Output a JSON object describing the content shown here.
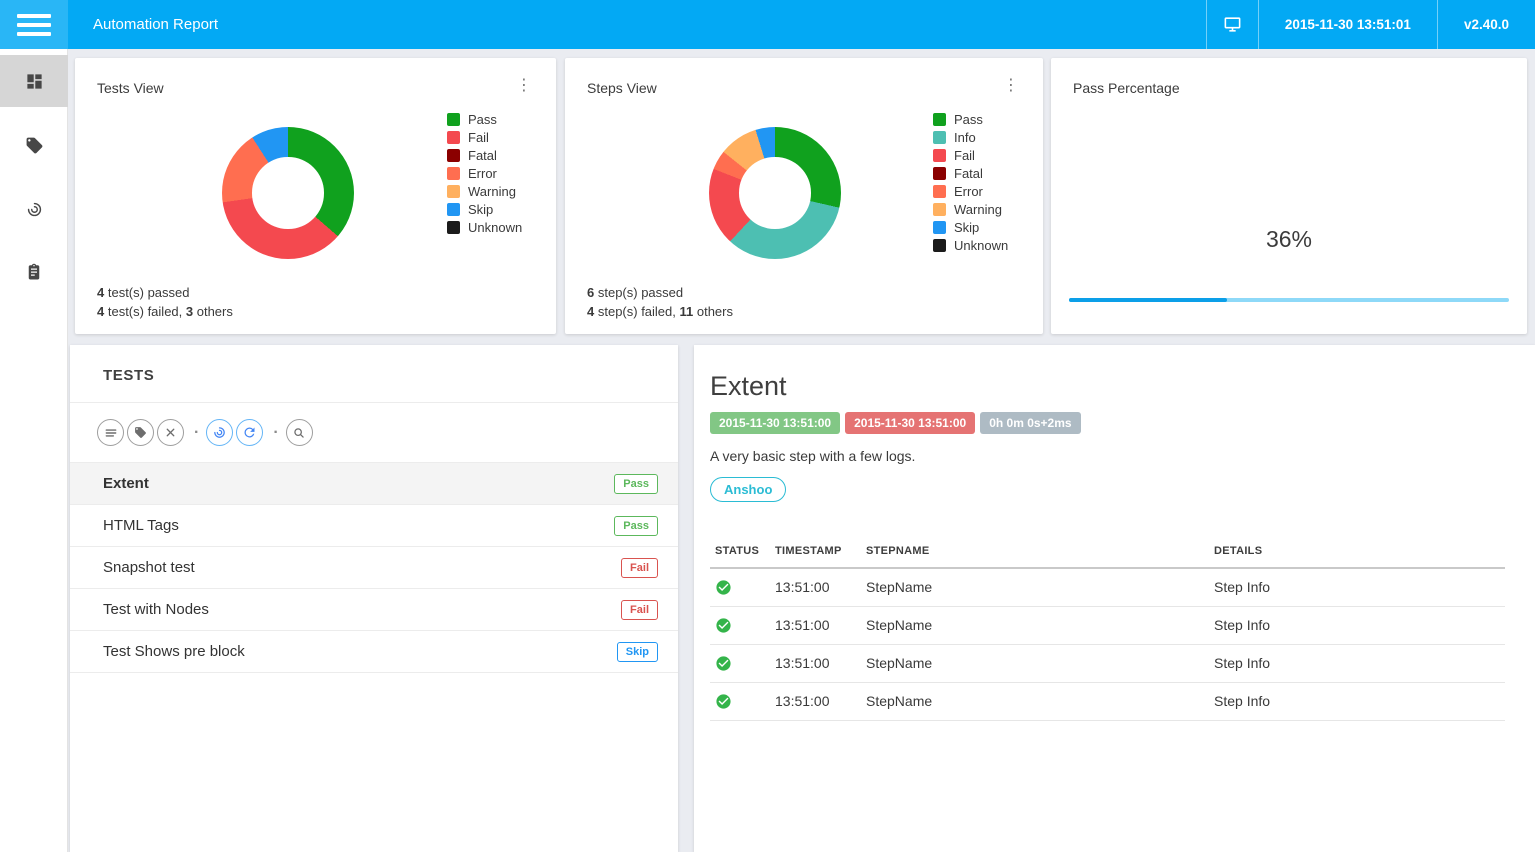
{
  "status_colors": {
    "pass": "#10a11e",
    "info": "#4dbfb2",
    "fail": "#f4494f",
    "fatal": "#8b0000",
    "error": "#ff6e50",
    "warning": "#ffb05f",
    "skip": "#2196f3",
    "unknown": "#1b1b1b"
  },
  "icons": {
    "kebab_menu": "⋮",
    "toolbar_dot": "·"
  },
  "header": {
    "title": "Automation Report",
    "datetime": "2015-11-30 13:51:01",
    "version": "v2.40.0"
  },
  "sidebar": {
    "items": [
      {
        "icon": "dashboard",
        "active": true
      },
      {
        "icon": "category-tag",
        "active": false
      },
      {
        "icon": "exceptions-spiral",
        "active": false
      },
      {
        "icon": "testrunner-logs-clipboard",
        "active": false
      }
    ]
  },
  "cards": {
    "tests_view": {
      "title": "Tests View",
      "legend": [
        {
          "label": "Pass",
          "color": "#10a11e"
        },
        {
          "label": "Fail",
          "color": "#f4494f"
        },
        {
          "label": "Fatal",
          "color": "#8b0000"
        },
        {
          "label": "Error",
          "color": "#ff6e50"
        },
        {
          "label": "Warning",
          "color": "#ffb05f"
        },
        {
          "label": "Skip",
          "color": "#2196f3"
        },
        {
          "label": "Unknown",
          "color": "#1b1b1b"
        }
      ],
      "summary": {
        "count1": "4",
        "text1": " test(s) passed",
        "count2": "4",
        "text2": " test(s) failed, ",
        "count3": "3",
        "text3": " others"
      }
    },
    "steps_view": {
      "title": "Steps View",
      "legend": [
        {
          "label": "Pass",
          "color": "#10a11e"
        },
        {
          "label": "Info",
          "color": "#4dbfb2"
        },
        {
          "label": "Fail",
          "color": "#f4494f"
        },
        {
          "label": "Fatal",
          "color": "#8b0000"
        },
        {
          "label": "Error",
          "color": "#ff6e50"
        },
        {
          "label": "Warning",
          "color": "#ffb05f"
        },
        {
          "label": "Skip",
          "color": "#2196f3"
        },
        {
          "label": "Unknown",
          "color": "#1b1b1b"
        }
      ],
      "summary": {
        "count1": "6",
        "text1": " step(s) passed",
        "count2": "4",
        "text2": " step(s) failed, ",
        "count3": "11",
        "text3": " others"
      }
    },
    "pass_percentage": {
      "title": "Pass Percentage",
      "value_label": "36%",
      "value": 36
    }
  },
  "tests_panel": {
    "title": "TESTS",
    "rows": [
      {
        "name": "Extent",
        "status": "Pass",
        "status_key": "pass",
        "selected": true
      },
      {
        "name": "HTML Tags",
        "status": "Pass",
        "status_key": "pass",
        "selected": false
      },
      {
        "name": "Snapshot test",
        "status": "Fail",
        "status_key": "fail",
        "selected": false
      },
      {
        "name": "Test with Nodes",
        "status": "Fail",
        "status_key": "fail",
        "selected": false
      },
      {
        "name": "Test Shows pre block",
        "status": "Skip",
        "status_key": "skip",
        "selected": false
      }
    ]
  },
  "detail": {
    "title": "Extent",
    "started_badge": "2015-11-30 13:51:00",
    "ended_badge": "2015-11-30 13:51:00",
    "duration_badge": "0h 0m 0s+2ms",
    "description": "A very basic step with a few logs.",
    "category": "Anshoo",
    "table": {
      "headers": {
        "status": "STATUS",
        "timestamp": "TIMESTAMP",
        "stepname": "STEPNAME",
        "details": "DETAILS"
      },
      "rows": [
        {
          "status": "pass",
          "timestamp": "13:51:00",
          "stepname": "StepName",
          "details": "Step Info"
        },
        {
          "status": "pass",
          "timestamp": "13:51:00",
          "stepname": "StepName",
          "details": "Step Info"
        },
        {
          "status": "pass",
          "timestamp": "13:51:00",
          "stepname": "StepName",
          "details": "Step Info"
        },
        {
          "status": "pass",
          "timestamp": "13:51:00",
          "stepname": "StepName",
          "details": "Step Info"
        }
      ]
    }
  },
  "chart_data": [
    {
      "type": "pie",
      "title": "Tests View",
      "donut": true,
      "legend_position": "right",
      "labels": [
        "Pass",
        "Fail",
        "Fatal",
        "Error",
        "Warning",
        "Skip",
        "Unknown"
      ],
      "values": [
        4,
        4,
        0,
        2,
        0,
        1,
        0
      ],
      "colors": [
        "#10a11e",
        "#f4494f",
        "#8b0000",
        "#ff6e50",
        "#ffb05f",
        "#2196f3",
        "#1b1b1b"
      ],
      "annotations": [
        "4 test(s) passed",
        "4 test(s) failed, 3 others"
      ]
    },
    {
      "type": "pie",
      "title": "Steps View",
      "donut": true,
      "legend_position": "right",
      "labels": [
        "Pass",
        "Info",
        "Fail",
        "Fatal",
        "Error",
        "Warning",
        "Skip",
        "Unknown"
      ],
      "values": [
        6,
        7,
        4,
        0,
        1,
        2,
        1,
        0
      ],
      "colors": [
        "#10a11e",
        "#4dbfb2",
        "#f4494f",
        "#8b0000",
        "#ff6e50",
        "#ffb05f",
        "#2196f3",
        "#1b1b1b"
      ],
      "annotations": [
        "6 step(s) passed",
        "4 step(s) failed, 11 others"
      ]
    },
    {
      "type": "progress",
      "title": "Pass Percentage",
      "value": 36,
      "value_label": "36%"
    }
  ]
}
